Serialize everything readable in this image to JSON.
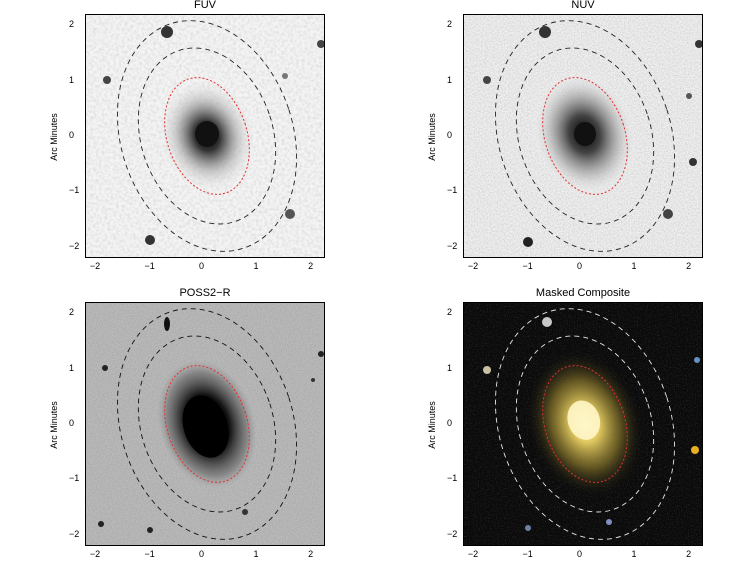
{
  "panels": [
    {
      "title": "FUV",
      "ylabel": "Arc Minutes",
      "variant": "light"
    },
    {
      "title": "NUV",
      "ylabel": "Arc Minutes",
      "variant": "light"
    },
    {
      "title": "POSS2−R",
      "ylabel": "Arc Minutes",
      "variant": "gray"
    },
    {
      "title": "Masked Composite",
      "ylabel": "Arc Minutes",
      "variant": "dark"
    }
  ],
  "axis": {
    "xticks": [
      "−2",
      "−1",
      "0",
      "1",
      "2"
    ],
    "yticks": [
      "2",
      "1",
      "0",
      "−1",
      "−2"
    ]
  },
  "colors": {
    "inner_ellipse": "#e03030",
    "outer_ellipse_light": "#222222",
    "outer_ellipse_dark": "#e8e8e8"
  }
}
